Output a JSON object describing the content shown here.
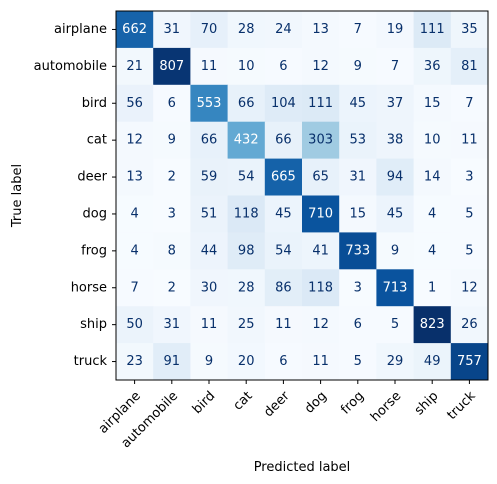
{
  "chart_data": {
    "type": "heatmap",
    "title": "",
    "xlabel": "Predicted label",
    "ylabel": "True label",
    "x_categories": [
      "airplane",
      "automobile",
      "bird",
      "cat",
      "deer",
      "dog",
      "frog",
      "horse",
      "ship",
      "truck"
    ],
    "y_categories": [
      "airplane",
      "automobile",
      "bird",
      "cat",
      "deer",
      "dog",
      "frog",
      "horse",
      "ship",
      "truck"
    ],
    "values": [
      [
        662,
        31,
        70,
        28,
        24,
        13,
        7,
        19,
        111,
        35
      ],
      [
        21,
        807,
        11,
        10,
        6,
        12,
        9,
        7,
        36,
        81
      ],
      [
        56,
        6,
        553,
        66,
        104,
        111,
        45,
        37,
        15,
        7
      ],
      [
        12,
        9,
        66,
        432,
        66,
        303,
        53,
        38,
        10,
        11
      ],
      [
        13,
        2,
        59,
        54,
        665,
        65,
        31,
        94,
        14,
        3
      ],
      [
        4,
        3,
        51,
        118,
        45,
        710,
        15,
        45,
        4,
        5
      ],
      [
        4,
        8,
        44,
        98,
        54,
        41,
        733,
        9,
        4,
        5
      ],
      [
        7,
        2,
        30,
        28,
        86,
        118,
        3,
        713,
        1,
        12
      ],
      [
        50,
        31,
        11,
        25,
        11,
        12,
        6,
        5,
        823,
        26
      ],
      [
        23,
        91,
        9,
        20,
        6,
        11,
        5,
        29,
        49,
        757
      ]
    ],
    "colormap": [
      "#f7fbff",
      "#deebf7",
      "#c6dbef",
      "#9ecae1",
      "#6baed6",
      "#4292c6",
      "#2171b5",
      "#08519c",
      "#08306b"
    ],
    "text_color_light": "#ffffff",
    "text_color_dark": "#08306b",
    "legend": "none",
    "grid": false
  }
}
